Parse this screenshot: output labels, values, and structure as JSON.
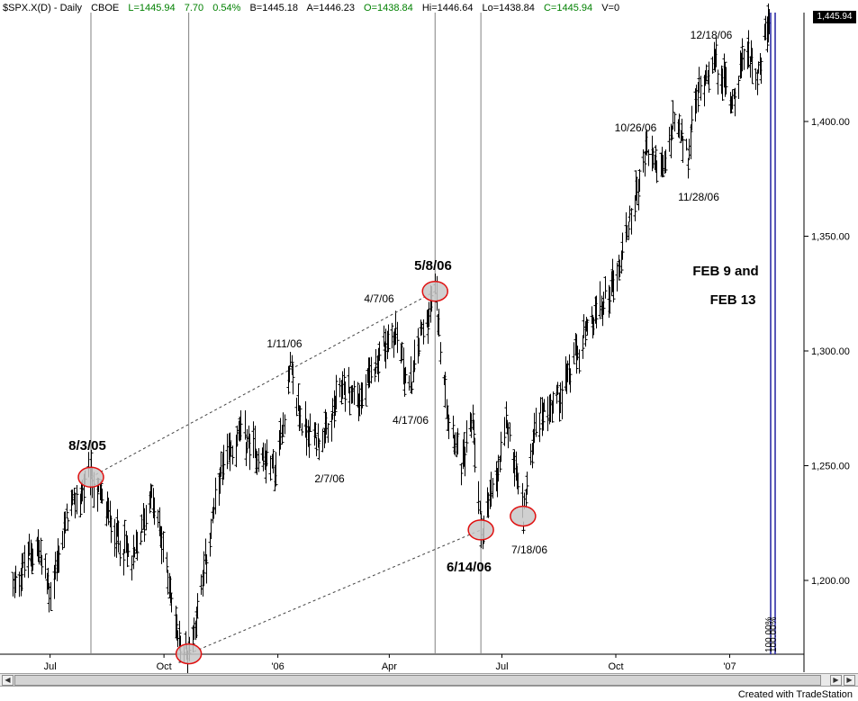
{
  "header": {
    "symbol": "$SPX.X(D) - Daily",
    "exchange": "CBOE",
    "last": "L=1445.94",
    "change": "7.70",
    "change_pct": "0.54%",
    "bid": "B=1445.18",
    "ask": "A=1446.23",
    "open": "O=1438.84",
    "high": "Hi=1446.64",
    "low": "Lo=1438.84",
    "close": "C=1445.94",
    "volume": "V=0"
  },
  "price_label": "1,445.94",
  "footer": "Created with TradeStation",
  "colors": {
    "bars": "#000000",
    "ellipse_fill": "#c8c8c8",
    "ellipse_stroke": "#e01010",
    "blue_line": "#2020a0",
    "grid": "#808080"
  },
  "chart_data": {
    "type": "line",
    "title": "",
    "xlabel": "",
    "ylabel": "",
    "x_ticks": [
      "Jul",
      "Oct",
      "'06",
      "Apr",
      "Jul",
      "Oct",
      "'07"
    ],
    "y_ticks": [
      "1,200.00",
      "1,250.00",
      "1,300.00",
      "1,350.00",
      "1,400.00"
    ],
    "ylim": [
      1167,
      1452
    ],
    "grid": false,
    "series": [
      {
        "values": [
          {
            "x": "2005-06-01",
            "y": 1198
          },
          {
            "x": "2005-06-20",
            "y": 1216
          },
          {
            "x": "2005-07-01",
            "y": 1194
          },
          {
            "x": "2005-07-15",
            "y": 1228
          },
          {
            "x": "2005-08-03",
            "y": 1245
          },
          {
            "x": "2005-08-22",
            "y": 1222
          },
          {
            "x": "2005-09-06",
            "y": 1208
          },
          {
            "x": "2005-09-20",
            "y": 1238
          },
          {
            "x": "2005-10-01",
            "y": 1212
          },
          {
            "x": "2005-10-13",
            "y": 1172
          },
          {
            "x": "2005-10-21",
            "y": 1168
          },
          {
            "x": "2005-11-01",
            "y": 1200
          },
          {
            "x": "2005-11-15",
            "y": 1245
          },
          {
            "x": "2005-12-01",
            "y": 1264
          },
          {
            "x": "2005-12-15",
            "y": 1256
          },
          {
            "x": "2005-12-30",
            "y": 1248
          },
          {
            "x": "2006-01-11",
            "y": 1292
          },
          {
            "x": "2006-01-20",
            "y": 1268
          },
          {
            "x": "2006-02-07",
            "y": 1260
          },
          {
            "x": "2006-02-22",
            "y": 1285
          },
          {
            "x": "2006-03-10",
            "y": 1278
          },
          {
            "x": "2006-03-24",
            "y": 1300
          },
          {
            "x": "2006-04-07",
            "y": 1308
          },
          {
            "x": "2006-04-17",
            "y": 1282
          },
          {
            "x": "2006-04-25",
            "y": 1305
          },
          {
            "x": "2006-05-08",
            "y": 1326
          },
          {
            "x": "2006-05-18",
            "y": 1275
          },
          {
            "x": "2006-05-30",
            "y": 1250
          },
          {
            "x": "2006-06-07",
            "y": 1272
          },
          {
            "x": "2006-06-14",
            "y": 1222
          },
          {
            "x": "2006-06-27",
            "y": 1245
          },
          {
            "x": "2006-07-05",
            "y": 1270
          },
          {
            "x": "2006-07-18",
            "y": 1228
          },
          {
            "x": "2006-07-28",
            "y": 1270
          },
          {
            "x": "2006-08-15",
            "y": 1280
          },
          {
            "x": "2006-09-01",
            "y": 1300
          },
          {
            "x": "2006-09-15",
            "y": 1315
          },
          {
            "x": "2006-10-02",
            "y": 1334
          },
          {
            "x": "2006-10-13",
            "y": 1360
          },
          {
            "x": "2006-10-26",
            "y": 1388
          },
          {
            "x": "2006-11-08",
            "y": 1378
          },
          {
            "x": "2006-11-17",
            "y": 1400
          },
          {
            "x": "2006-11-28",
            "y": 1384
          },
          {
            "x": "2006-12-05",
            "y": 1410
          },
          {
            "x": "2006-12-18",
            "y": 1428
          },
          {
            "x": "2007-01-03",
            "y": 1410
          },
          {
            "x": "2007-01-15",
            "y": 1432
          },
          {
            "x": "2007-01-24",
            "y": 1420
          },
          {
            "x": "2007-02-02",
            "y": 1446
          }
        ]
      }
    ],
    "annotations": [
      "8/3/05",
      "1/11/06",
      "2/7/06",
      "4/7/06",
      "5/8/06",
      "4/17/06",
      "6/14/06",
      "7/18/06",
      "10/26/06",
      "11/28/06",
      "12/18/06",
      "FEB 9  and",
      "FEB 13"
    ],
    "vertical_line_labels": [
      "100.00%",
      "100.00%"
    ]
  }
}
